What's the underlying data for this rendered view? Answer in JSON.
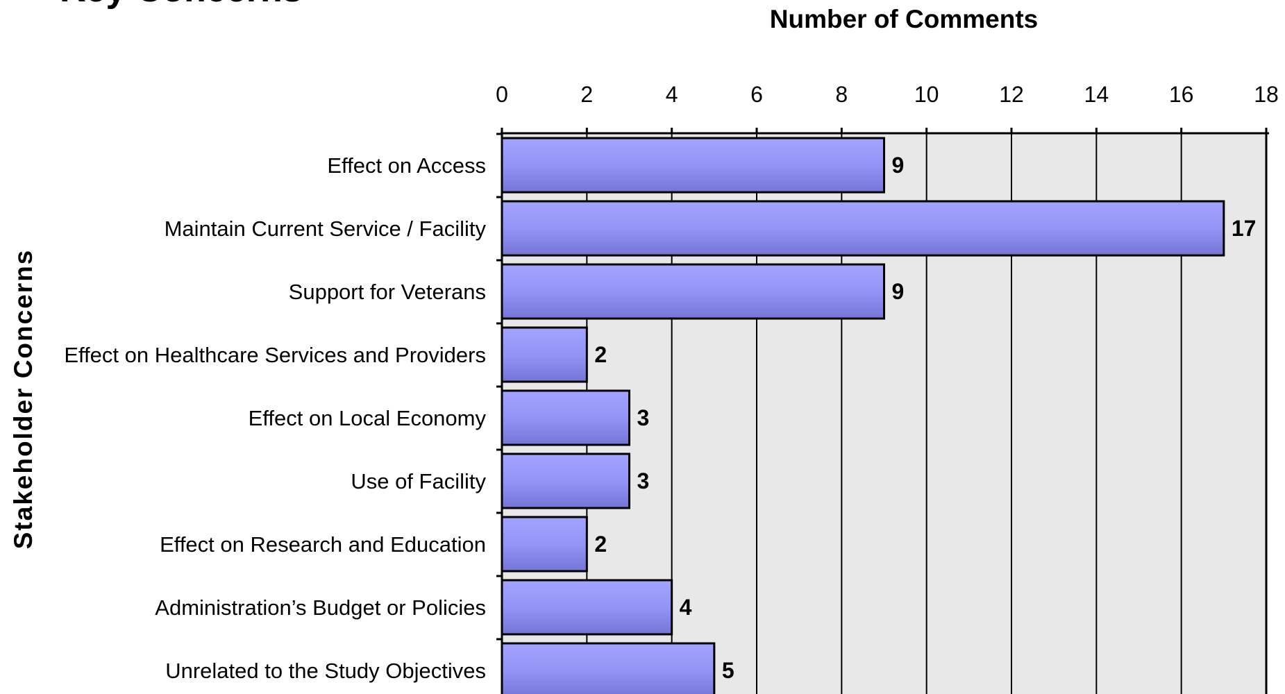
{
  "slide_title": "Key Concerns",
  "chart_data": {
    "type": "bar",
    "orientation": "horizontal",
    "title": "",
    "xlabel": "Number of Comments",
    "ylabel": "Stakeholder Concerns",
    "categories": [
      "Effect on Access",
      "Maintain Current Service / Facility",
      "Support for Veterans",
      "Effect on Healthcare Services and Providers",
      "Effect on Local Economy",
      "Use of Facility",
      "Effect on Research and Education",
      "Administration’s Budget or Policies",
      "Unrelated to the Study Objectives"
    ],
    "values": [
      9,
      17,
      9,
      2,
      3,
      3,
      2,
      4,
      5
    ],
    "xlim": [
      0,
      18
    ],
    "xticks": [
      0,
      2,
      4,
      6,
      8,
      10,
      12,
      14,
      16,
      18
    ],
    "x_axis_position": "top",
    "grid": true,
    "data_labels": true,
    "colors": {
      "bar_fill": "#9494f7",
      "bar_stroke": "#000000",
      "plot_background": "#e8e8e8",
      "grid_line": "#000000"
    }
  }
}
